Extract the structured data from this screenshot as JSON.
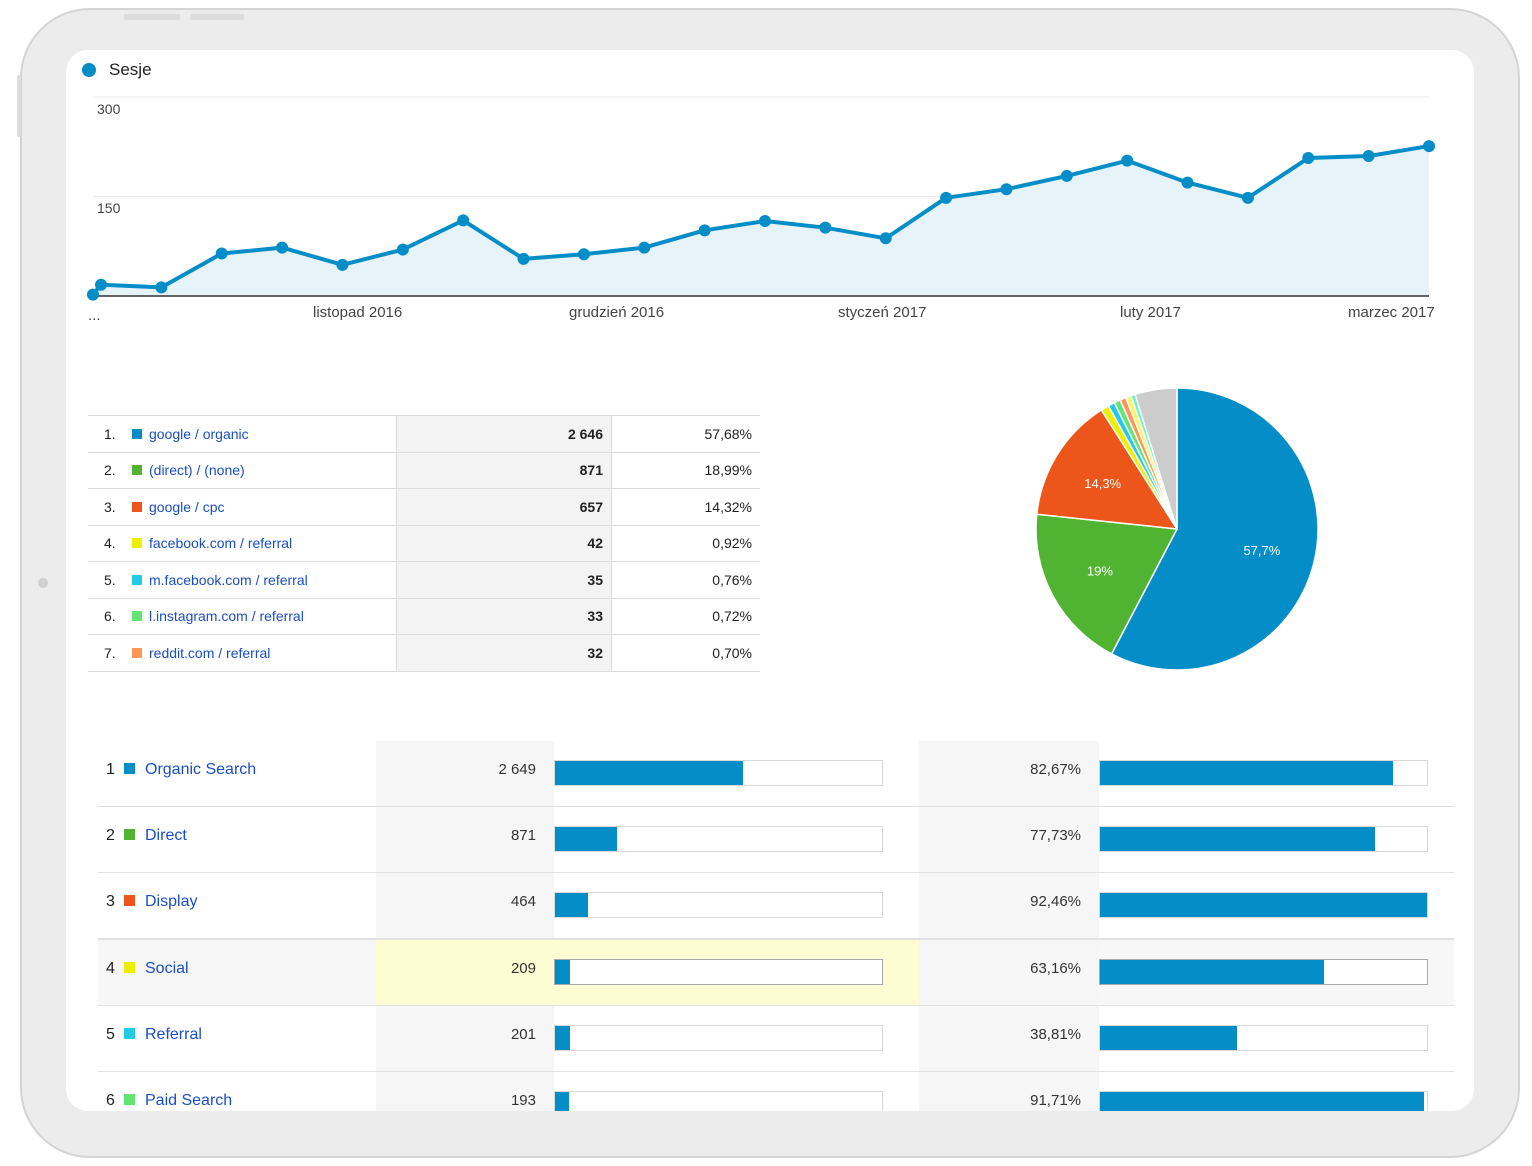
{
  "chart_data": [
    {
      "type": "area",
      "legend": [
        "Sesje"
      ],
      "series": [
        {
          "name": "Sesje",
          "color": "#058dc7",
          "values": [
            2,
            17,
            13,
            64,
            73,
            47,
            70,
            114,
            56,
            63,
            73,
            99,
            113,
            103,
            87,
            148,
            161,
            181,
            204,
            171,
            148,
            208,
            211,
            226
          ]
        }
      ],
      "ylim": [
        0,
        300
      ],
      "yticks": [
        "300",
        "150"
      ],
      "xticks": [
        "...",
        "listopad 2016",
        "grudzień 2016",
        "styczeń 2017",
        "luty 2017",
        "marzec 2017"
      ],
      "grid": true,
      "legend_position": "top-left"
    },
    {
      "type": "pie",
      "slices": [
        {
          "label": "57,7%",
          "value": 57.68,
          "color": "#058dc7"
        },
        {
          "label": "19%",
          "value": 18.99,
          "color": "#50b432"
        },
        {
          "label": "14,3%",
          "value": 14.32,
          "color": "#ed561b"
        },
        {
          "label": "",
          "value": 0.92,
          "color": "#edef00"
        },
        {
          "label": "",
          "value": 0.76,
          "color": "#24cbe5"
        },
        {
          "label": "",
          "value": 0.72,
          "color": "#64e572"
        },
        {
          "label": "",
          "value": 0.7,
          "color": "#ff9655"
        },
        {
          "label": "",
          "value": 0.6,
          "color": "#fff263"
        },
        {
          "label": "",
          "value": 0.5,
          "color": "#6af9c4"
        },
        {
          "label": "",
          "value": 4.81,
          "color": "#cccccc"
        }
      ]
    }
  ],
  "sources": [
    {
      "rank": "1.",
      "name": "google / organic",
      "sessions": "2 646",
      "pct": "57,68%",
      "color": "#058dc7"
    },
    {
      "rank": "2.",
      "name": "(direct) / (none)",
      "sessions": "871",
      "pct": "18,99%",
      "color": "#50b432"
    },
    {
      "rank": "3.",
      "name": "google / cpc",
      "sessions": "657",
      "pct": "14,32%",
      "color": "#ed561b"
    },
    {
      "rank": "4.",
      "name": "facebook.com / referral",
      "sessions": "42",
      "pct": "0,92%",
      "color": "#edef00"
    },
    {
      "rank": "5.",
      "name": "m.facebook.com / referral",
      "sessions": "35",
      "pct": "0,76%",
      "color": "#24cbe5"
    },
    {
      "rank": "6.",
      "name": "l.instagram.com / referral",
      "sessions": "33",
      "pct": "0,72%",
      "color": "#64e572"
    },
    {
      "rank": "7.",
      "name": "reddit.com / referral",
      "sessions": "32",
      "pct": "0,70%",
      "color": "#ff9655"
    }
  ],
  "channels": [
    {
      "rank": "1",
      "name": "Organic Search",
      "value": "2 649",
      "bar": 0.575,
      "pct": "82,67%",
      "bar2": 0.8951,
      "color": "#058dc7"
    },
    {
      "rank": "2",
      "name": "Direct",
      "value": "871",
      "bar": 0.19,
      "pct": "77,73%",
      "bar2": 0.8417,
      "color": "#50b432"
    },
    {
      "rank": "3",
      "name": "Display",
      "value": "464",
      "bar": 0.1,
      "pct": "92,46%",
      "bar2": 1.0,
      "color": "#ed561b"
    },
    {
      "rank": "4",
      "name": "Social",
      "value": "209",
      "bar": 0.045,
      "pct": "63,16%",
      "bar2": 0.6839,
      "color": "#edef00"
    },
    {
      "rank": "5",
      "name": "Referral",
      "value": "201",
      "bar": 0.045,
      "pct": "38,81%",
      "bar2": 0.4203,
      "color": "#24cbe5"
    },
    {
      "rank": "6",
      "name": "Paid Search",
      "value": "193",
      "bar": 0.042,
      "pct": "91,71%",
      "bar2": 0.9919,
      "color": "#64e572"
    }
  ]
}
